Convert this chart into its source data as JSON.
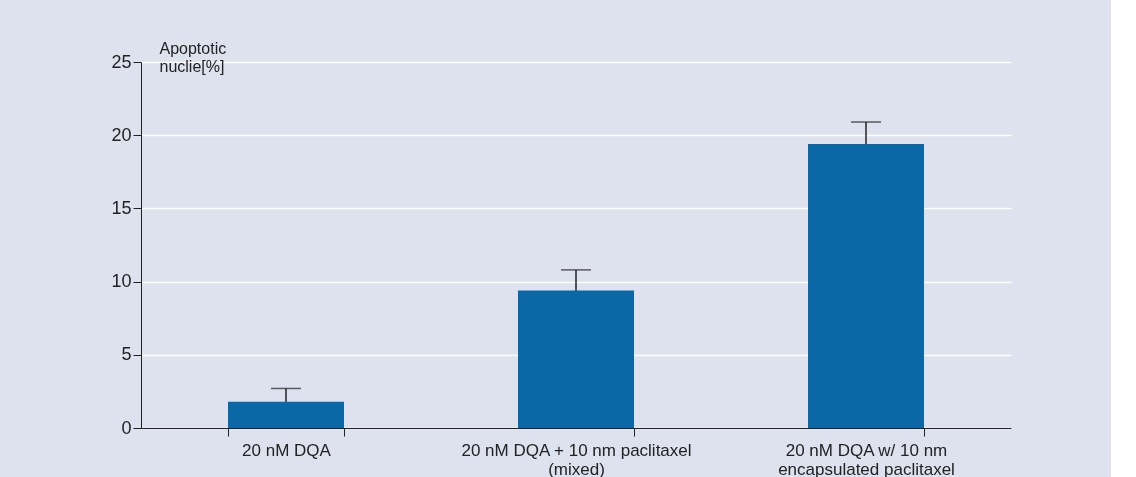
{
  "chart_data": {
    "type": "bar",
    "ylabel": "Apoptotic nuclie[%]",
    "categories": [
      "20 nM DQA",
      "20 nM DQA + 10 nm paclitaxel (mixed)",
      "20 nM DQA w/ 10 nm encapsulated paclitaxel"
    ],
    "values": [
      1.8,
      9.4,
      19.4
    ],
    "errors": [
      0.9,
      1.4,
      1.5
    ],
    "color": "#0b68a6",
    "ylim": [
      0,
      25
    ],
    "yticks": [
      0,
      5,
      10,
      15,
      20,
      25
    ],
    "grid": "y"
  }
}
